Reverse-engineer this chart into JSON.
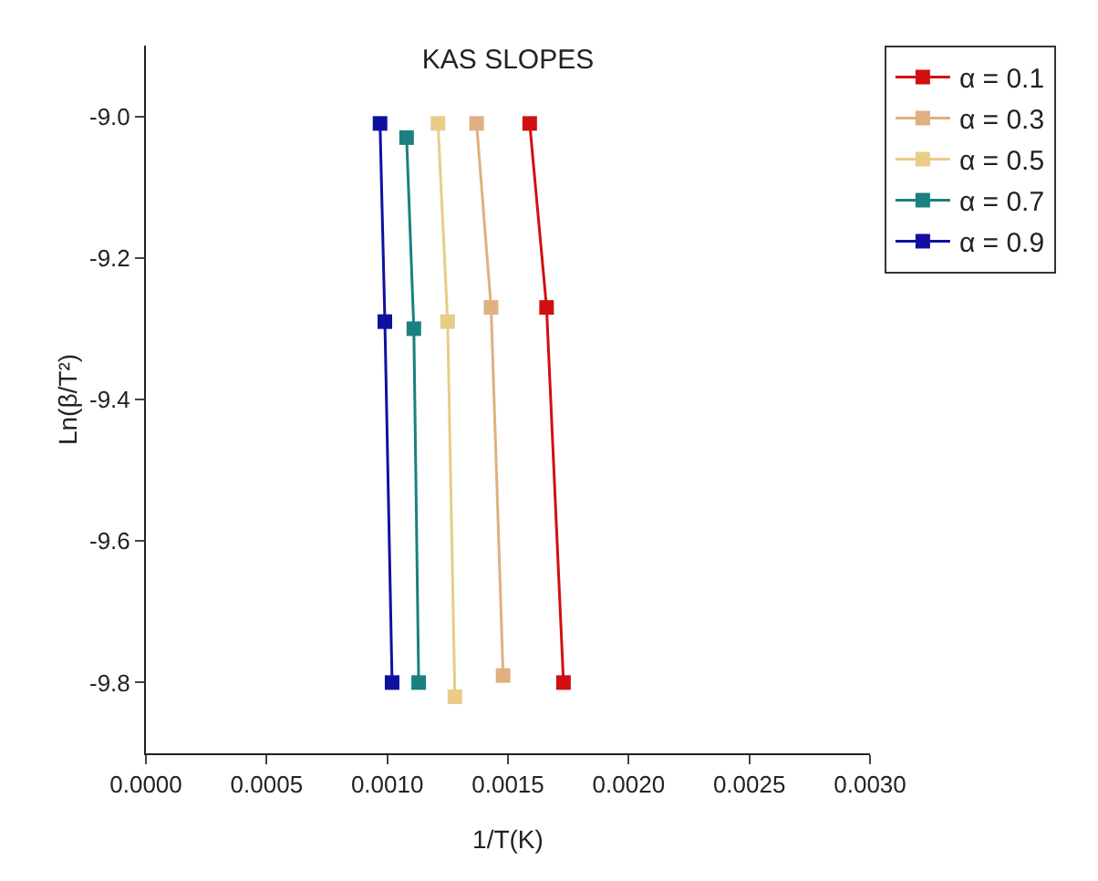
{
  "chart_data": {
    "type": "line",
    "title": "KAS SLOPES",
    "xlabel": "1/T(K)",
    "ylabel": "Ln(β/T²)",
    "xlim": [
      0,
      0.003
    ],
    "xticks": [
      {
        "value": 0,
        "label": "0.0000"
      },
      {
        "value": 0.0005,
        "label": "0.0005"
      },
      {
        "value": 0.001,
        "label": "0.0010"
      },
      {
        "value": 0.0015,
        "label": "0.0015"
      },
      {
        "value": 0.002,
        "label": "0.0020"
      },
      {
        "value": 0.0025,
        "label": "0.0025"
      },
      {
        "value": 0.003,
        "label": "0.0030"
      }
    ],
    "ylim": [
      -9.9,
      -8.9
    ],
    "yticks": [
      {
        "value": -9.8,
        "label": "-9.8"
      },
      {
        "value": -9.6,
        "label": "-9.6"
      },
      {
        "value": -9.4,
        "label": "-9.4"
      },
      {
        "value": -9.2,
        "label": "-9.2"
      },
      {
        "value": -9.0,
        "label": "-9.0"
      }
    ],
    "grid": false,
    "legend": "top right",
    "marker": "square",
    "line_style": "solid",
    "series": [
      {
        "name": "α = 0.1",
        "color": "#d01010",
        "x": [
          0.00159,
          0.00166,
          0.00173
        ],
        "values": [
          -9.01,
          -9.27,
          -9.8
        ]
      },
      {
        "name": "α = 0.3",
        "color": "#e0b080",
        "x": [
          0.00137,
          0.00143,
          0.00148
        ],
        "values": [
          -9.01,
          -9.27,
          -9.79
        ]
      },
      {
        "name": "α = 0.5",
        "color": "#e8cc88",
        "x": [
          0.00121,
          0.00125,
          0.00128
        ],
        "values": [
          -9.01,
          -9.29,
          -9.82
        ]
      },
      {
        "name": "α = 0.7",
        "color": "#1a8080",
        "x": [
          0.00108,
          0.00111,
          0.00113
        ],
        "values": [
          -9.03,
          -9.3,
          -9.8
        ]
      },
      {
        "name": "α = 0.9",
        "color": "#1010a0",
        "x": [
          0.00097,
          0.00099,
          0.00102
        ],
        "values": [
          -9.01,
          -9.29,
          -9.8
        ]
      }
    ]
  }
}
